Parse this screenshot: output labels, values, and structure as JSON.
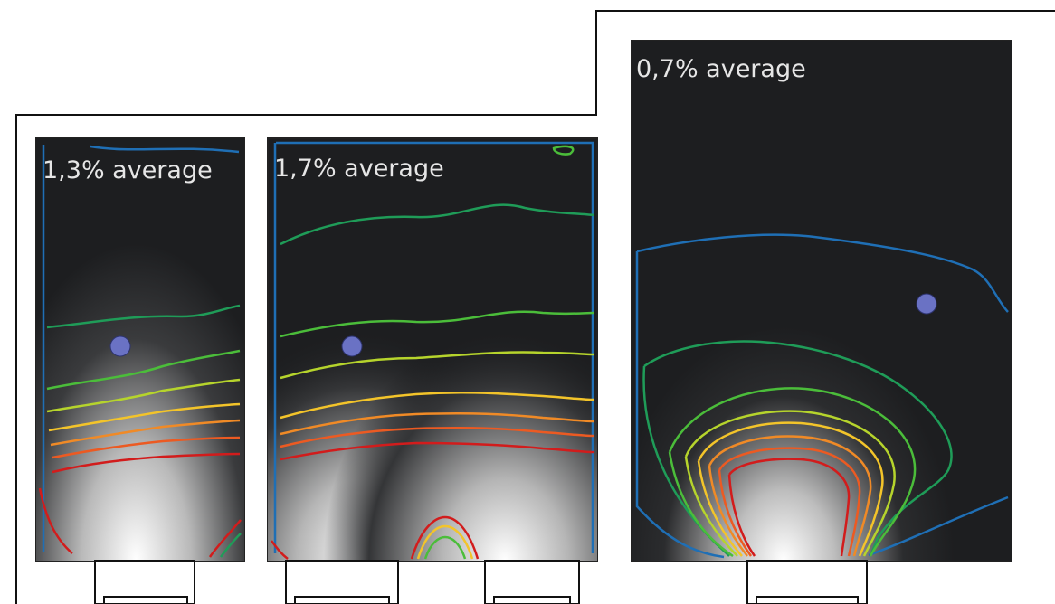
{
  "panels": [
    {
      "label": "1,3% average"
    },
    {
      "label": "1,7% average"
    },
    {
      "label": "0,7% average"
    }
  ],
  "colors": {
    "background": "#ffffff",
    "room_interior": "#1d1e20",
    "floor_plan_line": "#111111",
    "measurement_point": "#6a72c4",
    "contour_scale": [
      "#d21c1c",
      "#ec5a22",
      "#f08a26",
      "#f3c42a",
      "#b6d42c",
      "#4bbd3a",
      "#1f9c58",
      "#1f6fb5"
    ]
  }
}
